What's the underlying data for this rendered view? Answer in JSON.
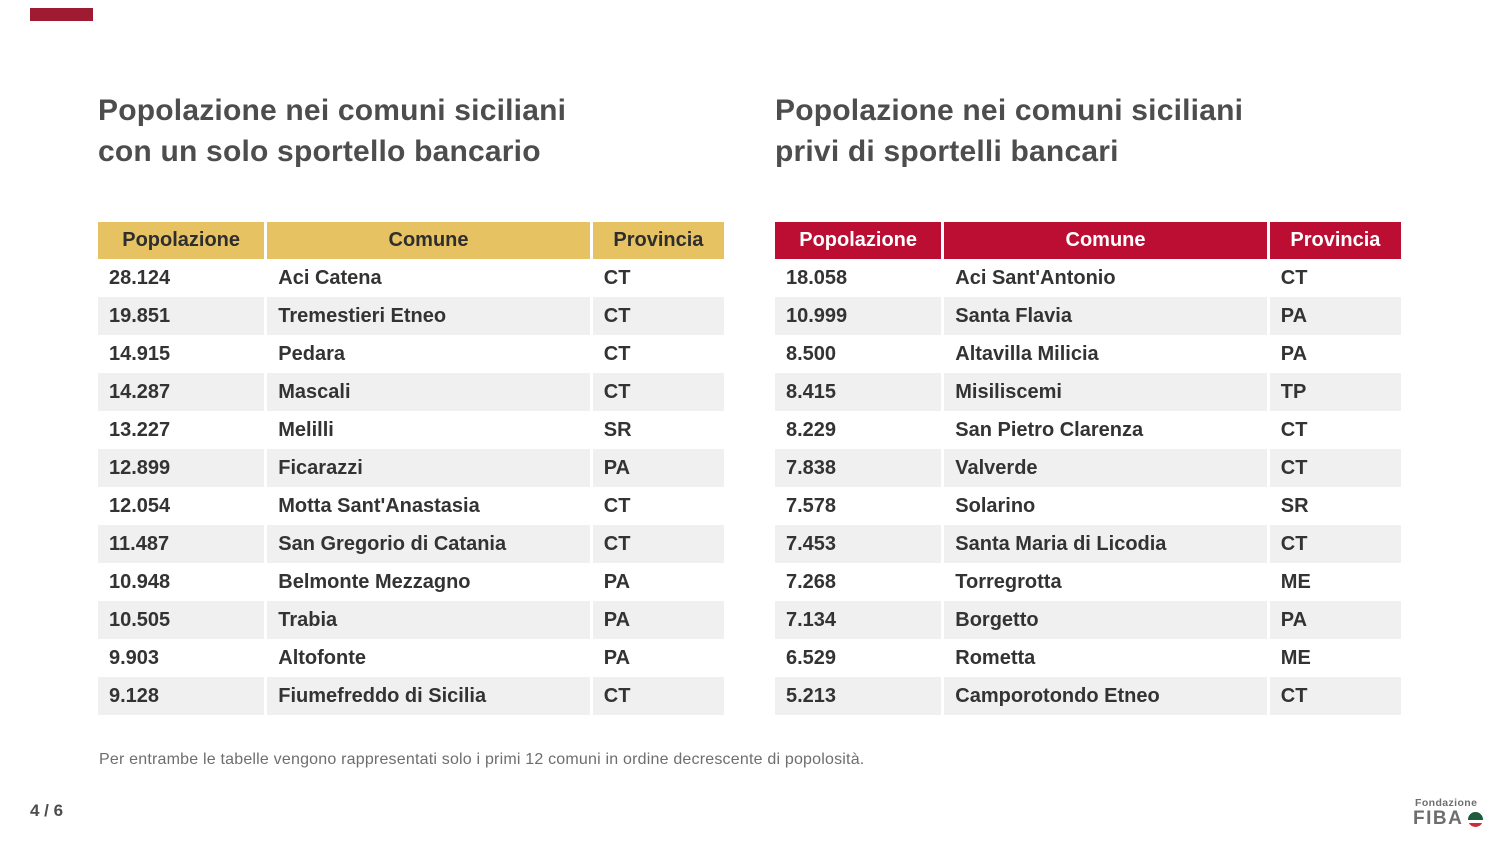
{
  "page": {
    "page_number": "4 / 6",
    "footnote": "Per entrambe le tabelle vengono rappresentati solo i primi 12 comuni in ordine decrescente di popolosità.",
    "accent_color": "#9E1B31"
  },
  "logo": {
    "top_text": "Fondazione",
    "name": "FIBA",
    "globe_icon": "italian-flag-globe-icon",
    "colors": {
      "green": "#1E5B3E",
      "white": "#FFFFFF",
      "red": "#CE2B37",
      "gray": "#6E6E6E"
    }
  },
  "tables": [
    {
      "title_line1": "Popolazione nei comuni siciliani",
      "title_line2": "con un solo sportello bancario",
      "header_bg": "#E7C262",
      "header_text_color": "#2E2E2E",
      "columns": [
        "Popolazione",
        "Comune",
        "Provincia"
      ],
      "rows": [
        [
          "28.124",
          "Aci Catena",
          "CT"
        ],
        [
          "19.851",
          "Tremestieri Etneo",
          "CT"
        ],
        [
          "14.915",
          "Pedara",
          "CT"
        ],
        [
          "14.287",
          "Mascali",
          "CT"
        ],
        [
          "13.227",
          "Melilli",
          "SR"
        ],
        [
          "12.899",
          "Ficarazzi",
          "PA"
        ],
        [
          "12.054",
          "Motta Sant'Anastasia",
          "CT"
        ],
        [
          "11.487",
          "San Gregorio di Catania",
          "CT"
        ],
        [
          "10.948",
          "Belmonte Mezzagno",
          "PA"
        ],
        [
          "10.505",
          "Trabia",
          "PA"
        ],
        [
          "9.903",
          "Altofonte",
          "PA"
        ],
        [
          "9.128",
          "Fiumefreddo di Sicilia",
          "CT"
        ]
      ]
    },
    {
      "title_line1": "Popolazione nei comuni siciliani",
      "title_line2": "privi di sportelli bancari",
      "header_bg": "#BC0E32",
      "header_text_color": "#FFFFFF",
      "columns": [
        "Popolazione",
        "Comune",
        "Provincia"
      ],
      "rows": [
        [
          "18.058",
          "Aci Sant'Antonio",
          "CT"
        ],
        [
          "10.999",
          "Santa Flavia",
          "PA"
        ],
        [
          "8.500",
          "Altavilla Milicia",
          "PA"
        ],
        [
          "8.415",
          "Misiliscemi",
          "TP"
        ],
        [
          "8.229",
          "San Pietro Clarenza",
          "CT"
        ],
        [
          "7.838",
          "Valverde",
          "CT"
        ],
        [
          "7.578",
          "Solarino",
          "SR"
        ],
        [
          "7.453",
          "Santa Maria di Licodia",
          "CT"
        ],
        [
          "7.268",
          "Torregrotta",
          "ME"
        ],
        [
          "7.134",
          "Borgetto",
          "PA"
        ],
        [
          "6.529",
          "Rometta",
          "ME"
        ],
        [
          "5.213",
          "Camporotondo Etneo",
          "CT"
        ]
      ]
    }
  ]
}
